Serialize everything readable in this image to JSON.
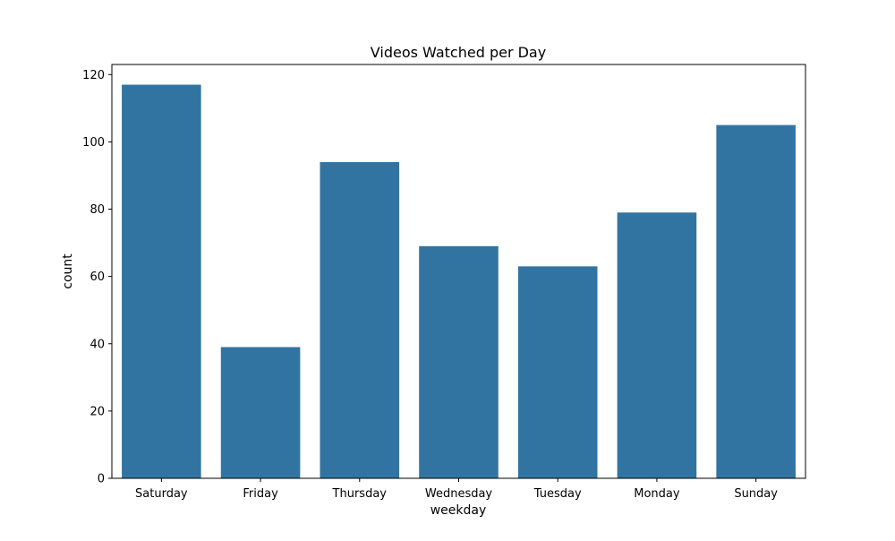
{
  "chart_data": {
    "type": "bar",
    "title": "Videos Watched per Day",
    "xlabel": "weekday",
    "ylabel": "count",
    "categories": [
      "Saturday",
      "Friday",
      "Thursday",
      "Wednesday",
      "Tuesday",
      "Monday",
      "Sunday"
    ],
    "values": [
      117,
      39,
      94,
      69,
      63,
      79,
      105
    ],
    "ylim": [
      0,
      123
    ],
    "yticks": [
      0,
      20,
      40,
      60,
      80,
      100,
      120
    ],
    "grid": false,
    "bar_color": "#3274a1"
  }
}
